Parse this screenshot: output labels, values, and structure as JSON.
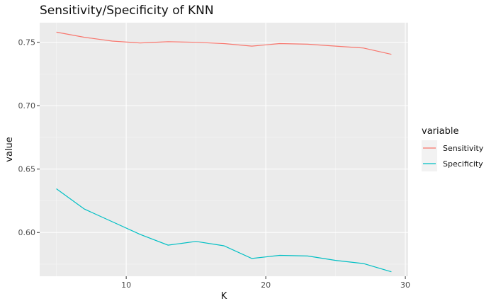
{
  "chart_data": {
    "type": "line",
    "title": "Sensitivity/Specificity of KNN",
    "xlabel": "K",
    "ylabel": "value",
    "xlim": [
      3.8,
      30.2
    ],
    "ylim": [
      0.5655,
      0.7655
    ],
    "xticks": [
      10,
      20,
      30
    ],
    "yticks": [
      0.6,
      0.65,
      0.7,
      0.75
    ],
    "ytick_labels": [
      "0.60",
      "0.65",
      "0.70",
      "0.75"
    ],
    "grid": true,
    "legend": {
      "title": "variable",
      "position": "right"
    },
    "x": [
      5,
      7,
      9,
      11,
      13,
      15,
      17,
      19,
      21,
      23,
      25,
      27,
      29
    ],
    "series": [
      {
        "name": "Sensitivity",
        "color": "#F8766D",
        "values": [
          0.758,
          0.754,
          0.751,
          0.7495,
          0.7505,
          0.75,
          0.749,
          0.747,
          0.749,
          0.7485,
          0.747,
          0.7455,
          0.7405
        ]
      },
      {
        "name": "Specificity",
        "color": "#00BFC4",
        "values": [
          0.6345,
          0.6185,
          0.6085,
          0.5985,
          0.59,
          0.593,
          0.5895,
          0.5795,
          0.582,
          0.5815,
          0.578,
          0.5755,
          0.569
        ]
      }
    ]
  }
}
